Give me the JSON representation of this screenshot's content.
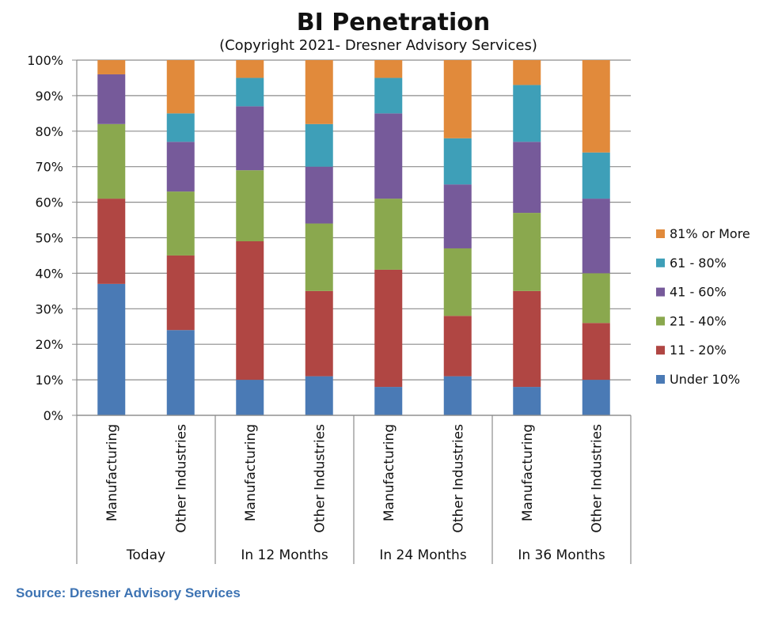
{
  "chart_data": {
    "type": "bar",
    "stacked": true,
    "title": "BI Penetration",
    "subtitle": "(Copyright 2021- Dresner Advisory Services)",
    "groups": [
      {
        "label": "Today",
        "categories": [
          "Manufacturing",
          "Other Industries"
        ]
      },
      {
        "label": "In 12 Months",
        "categories": [
          "Manufacturing",
          "Other Industries"
        ]
      },
      {
        "label": "In 24 Months",
        "categories": [
          "Manufacturing",
          "Other Industries"
        ]
      },
      {
        "label": "In 36 Months",
        "categories": [
          "Manufacturing",
          "Other Industries"
        ]
      }
    ],
    "series": [
      {
        "name": "Under 10%",
        "color": "#4a7ab5",
        "values": [
          37,
          24,
          10,
          11,
          8,
          11,
          8,
          10
        ]
      },
      {
        "name": "11 - 20%",
        "color": "#b04643",
        "values": [
          24,
          21,
          39,
          24,
          33,
          17,
          27,
          16
        ]
      },
      {
        "name": "21 - 40%",
        "color": "#8aa84e",
        "values": [
          21,
          18,
          20,
          19,
          20,
          19,
          22,
          14
        ]
      },
      {
        "name": "41 - 60%",
        "color": "#765a9a",
        "values": [
          14,
          14,
          18,
          16,
          24,
          18,
          20,
          21
        ]
      },
      {
        "name": "61 - 80%",
        "color": "#3e9fb8",
        "values": [
          0,
          8,
          8,
          12,
          10,
          13,
          16,
          13
        ]
      },
      {
        "name": "81% or More",
        "color": "#e18a3b",
        "values": [
          4,
          15,
          5,
          18,
          5,
          22,
          7,
          26
        ]
      }
    ],
    "yaxis": {
      "min": 0,
      "max": 100,
      "ticks": [
        "0%",
        "10%",
        "20%",
        "30%",
        "40%",
        "50%",
        "60%",
        "70%",
        "80%",
        "90%",
        "100%"
      ]
    },
    "grid": true,
    "legend_position": "right"
  },
  "source_text": "Source: Dresner Advisory Services"
}
